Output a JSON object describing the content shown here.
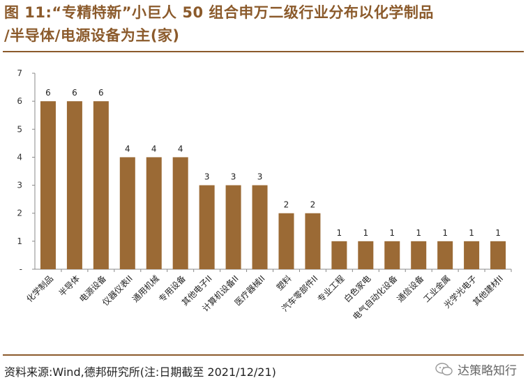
{
  "header": {
    "title_line1": "图 11:“专精特新”小巨人 50 组合申万二级行业分布以化学制品",
    "title_line2": "/半导体/电源设备为主(家)"
  },
  "footer": {
    "source": "资料来源:Wind,德邦研究所(注:日期截至 2021/12/21)",
    "watermark": "达策略知行"
  },
  "colors": {
    "bar": "#9B6A35",
    "accent": "#8B5A2B",
    "axis": "#888888"
  },
  "chart_data": {
    "type": "bar",
    "categories": [
      "化学制品",
      "半导体",
      "电源设备",
      "仪器仪表II",
      "通用机械",
      "专用设备",
      "其他电子II",
      "计算机设备II",
      "医疗器械II",
      "塑料",
      "汽车零部件II",
      "专业工程",
      "白色家电",
      "电气自动化设备",
      "通信设备",
      "工业金属",
      "光学光电子",
      "其他建材II"
    ],
    "values": [
      6,
      6,
      6,
      4,
      4,
      4,
      3,
      3,
      3,
      2,
      2,
      1,
      1,
      1,
      1,
      1,
      1,
      1
    ],
    "yticks": [
      "-",
      "1",
      "2",
      "3",
      "4",
      "5",
      "6",
      "7"
    ],
    "ylim": [
      0,
      7
    ],
    "title": "",
    "xlabel": "",
    "ylabel": "",
    "grid": false
  }
}
